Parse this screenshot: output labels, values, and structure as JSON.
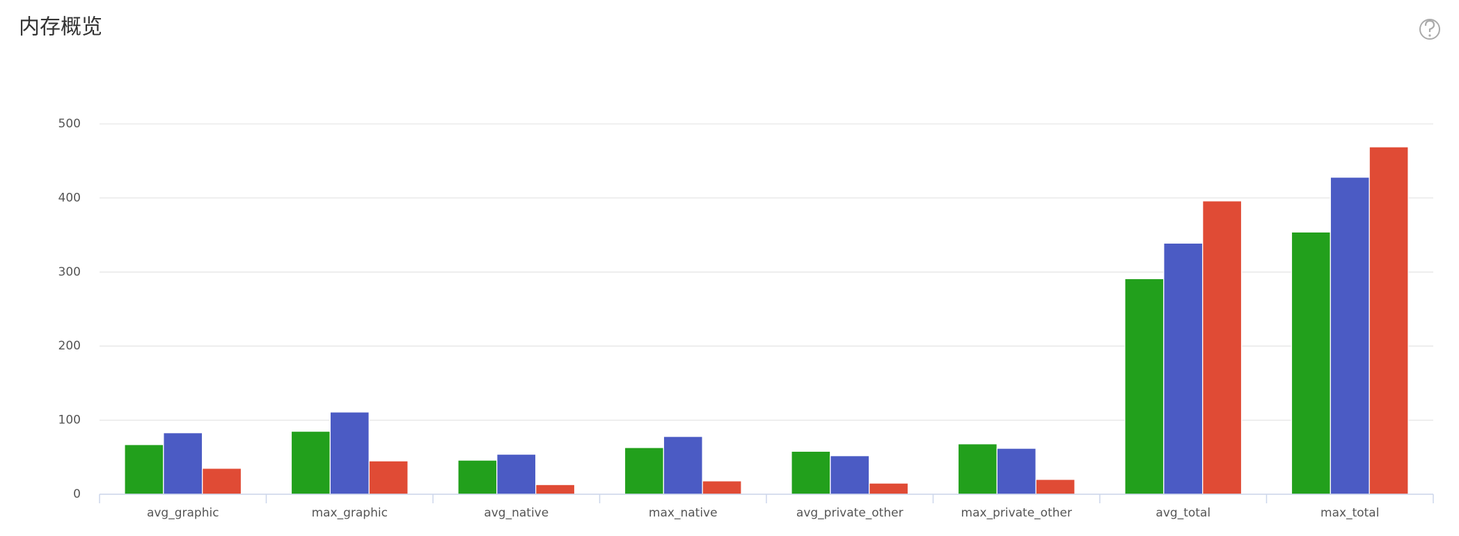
{
  "chart_data": {
    "type": "bar",
    "title": "内存概览",
    "categories": [
      "avg_graphic",
      "max_graphic",
      "avg_native",
      "max_native",
      "avg_private_other",
      "max_private_other",
      "avg_total",
      "max_total"
    ],
    "series": [
      {
        "color": "#22a01c",
        "values": [
          67,
          85,
          46,
          63,
          58,
          68,
          291,
          354
        ]
      },
      {
        "color": "#4b5bc4",
        "values": [
          83,
          111,
          54,
          78,
          52,
          62,
          339,
          428
        ]
      },
      {
        "color": "#e04b35",
        "values": [
          35,
          45,
          13,
          18,
          15,
          20,
          396,
          469
        ]
      }
    ],
    "ylim": [
      0,
      500
    ],
    "yticks": [
      0,
      100,
      200,
      300,
      400,
      500
    ],
    "grid": true
  }
}
